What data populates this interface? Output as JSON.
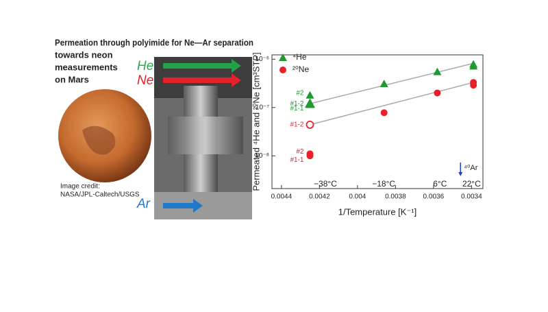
{
  "slide": {
    "title": "Permeation through polyimide for Ne—Ar separation",
    "subtitle_lines": [
      "towards neon",
      "measurements",
      "on Mars"
    ],
    "gas_labels": [
      {
        "text": "He",
        "color": "#2fa84f"
      },
      {
        "text": "Ne",
        "color": "#e8202a"
      },
      {
        "text": "Ar",
        "color": "#1f78c8"
      }
    ],
    "credit_lines": [
      "Image credit:",
      "NASA/JPL-Caltech/USGS"
    ]
  },
  "chart_data": {
    "type": "scatter",
    "xlabel": "1/Temperature [K⁻¹]",
    "ylabel": "Permeated ⁴He and ²⁰Ne [cm³STP]",
    "xlim": [
      0.00445,
      0.00334
    ],
    "xticks": [
      0.0044,
      0.0042,
      0.004,
      0.0038,
      0.0036,
      0.0034
    ],
    "ylim": [
      2.1e-09,
      1.23e-06
    ],
    "log_y": true,
    "yticks": [
      {
        "value": 1e-08,
        "label": "10⁻⁸"
      },
      {
        "value": 1e-07,
        "label": "10⁻⁷"
      },
      {
        "value": 1e-06,
        "label": "10⁻⁶"
      }
    ],
    "legend": "upper left",
    "series": [
      {
        "name": "⁴He",
        "color": "#1f9a2e",
        "marker": "triangle",
        "x": [
          0.00425,
          0.00425,
          0.00425,
          0.00386,
          0.00358,
          0.00339,
          0.00339
        ],
        "values": [
          1.8e-07,
          1.2e-07,
          1.15e-07,
          3.1e-07,
          5.5e-07,
          7.9e-07,
          7.2e-07
        ],
        "open": [
          false,
          true,
          false,
          false,
          false,
          false,
          false
        ],
        "point_labels": [
          "#2",
          "#1-2",
          "#1-1",
          null,
          null,
          null,
          null
        ]
      },
      {
        "name": "²⁰Ne",
        "color": "#e8202a",
        "marker": "circle",
        "x": [
          0.00425,
          0.00425,
          0.00425,
          0.00386,
          0.00358,
          0.00339,
          0.00339
        ],
        "values": [
          4.4e-08,
          1.1e-08,
          1e-08,
          7.8e-08,
          2e-07,
          3.3e-07,
          2.9e-07
        ],
        "open": [
          true,
          false,
          false,
          false,
          false,
          false,
          false
        ],
        "point_labels": [
          "#1-2",
          "#2",
          "#1-1",
          null,
          null,
          null,
          null
        ]
      }
    ],
    "fit_lines": [
      {
        "color": "#aaaaaa",
        "x": [
          0.00425,
          0.00339
        ],
        "values": [
          1.2e-07,
          8.2e-07
        ]
      },
      {
        "color": "#aaaaaa",
        "x": [
          0.00425,
          0.00339
        ],
        "values": [
          4.4e-08,
          3.3e-07
        ]
      }
    ],
    "temperature_labels": [
      {
        "x": 0.004169,
        "label": "−38°C"
      },
      {
        "x": 0.003862,
        "label": "−18°C"
      },
      {
        "x": 0.003566,
        "label": "6°C"
      },
      {
        "x": 0.0034,
        "label": "22°C"
      }
    ],
    "ar_marker": {
      "x": 0.003458,
      "label": "⁴⁰Ar",
      "color": "#1f3fbf"
    }
  }
}
